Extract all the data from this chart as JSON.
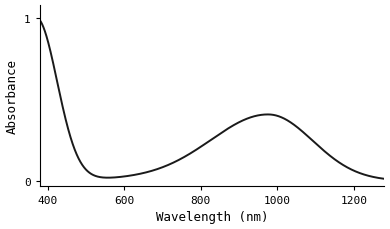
{
  "title": "",
  "xlabel": "Wavelength (nm)",
  "ylabel": "Absorbance",
  "xlim": [
    380,
    1280
  ],
  "ylim": [
    -0.03,
    1.08
  ],
  "xticks": [
    400,
    600,
    800,
    1000,
    1200
  ],
  "yticks": [
    0,
    1
  ],
  "line_color": "#1a1a1a",
  "line_width": 1.4,
  "background_color": "#ffffff",
  "font_family": "DejaVu Sans Mono",
  "tick_labelsize": 8,
  "axis_labelsize": 9
}
